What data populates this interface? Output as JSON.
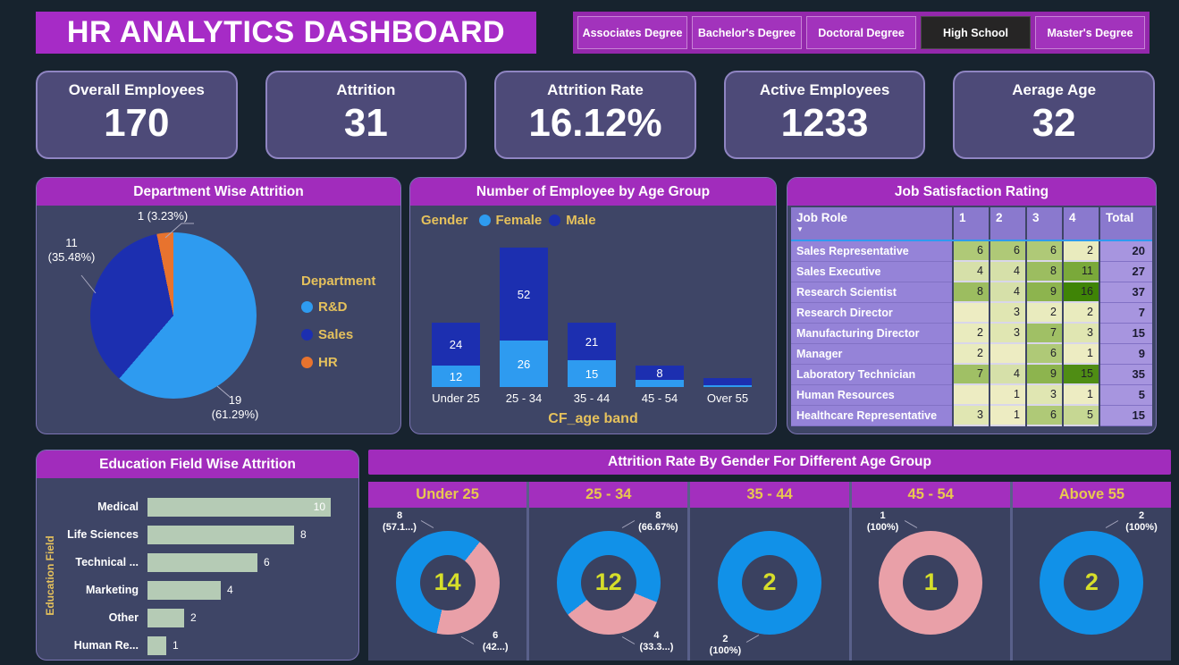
{
  "page": {
    "banner": {
      "title": "HR ANALYTICS DASHBOARD",
      "bg": "#A62BC6"
    },
    "background": "#17232E"
  },
  "filters": {
    "buttons": [
      {
        "label": "Associates Degree",
        "selected": false
      },
      {
        "label": "Bachelor's Degree",
        "selected": false
      },
      {
        "label": "Doctoral Degree",
        "selected": false
      },
      {
        "label": "High School",
        "selected": true
      },
      {
        "label": "Master's Degree",
        "selected": false
      }
    ]
  },
  "kpis": [
    {
      "label": "Overall Employees",
      "value": "170"
    },
    {
      "label": "Attrition",
      "value": "31"
    },
    {
      "label": "Attrition Rate",
      "value": "16.12%"
    },
    {
      "label": "Active Employees",
      "value": "1233"
    },
    {
      "label": "Aerage Age",
      "value": "32"
    }
  ],
  "chart_data": [
    {
      "id": "department-wise-attrition",
      "type": "pie",
      "title": "Department Wise Attrition",
      "legend_title": "Department",
      "legend_position": "right",
      "slices": [
        {
          "label": "R&D",
          "value": 19,
          "pct": 61.29,
          "color": "#2E9BF0",
          "callout": "19\n(61.29%)"
        },
        {
          "label": "Sales",
          "value": 11,
          "pct": 35.48,
          "color": "#1C2FB0",
          "callout": "11\n(35.48%)"
        },
        {
          "label": "HR",
          "value": 1,
          "pct": 3.23,
          "color": "#E8732E",
          "callout": "1 (3.23%)"
        }
      ]
    },
    {
      "id": "employees-by-age-group",
      "type": "bar",
      "stacked": true,
      "title": "Number of Employee by Age Group",
      "legend_title": "Gender",
      "categories": [
        "Under 25",
        "25 - 34",
        "35 - 44",
        "45 - 54",
        "Over 55"
      ],
      "series": [
        {
          "name": "Female",
          "color": "#2E9BF0",
          "values": [
            12,
            26,
            15,
            4,
            1
          ]
        },
        {
          "name": "Male",
          "color": "#1C2FB0",
          "values": [
            24,
            52,
            21,
            8,
            4
          ]
        }
      ],
      "xlabel": "CF_age band",
      "ylim": [
        0,
        78
      ],
      "label_min": 8
    },
    {
      "id": "job-satisfaction-rating",
      "type": "heatmap",
      "title": "Job Satisfaction Rating",
      "columns": [
        "Job Role",
        "1",
        "2",
        "3",
        "4",
        "Total"
      ],
      "rows": [
        {
          "role": "Sales Representative",
          "ratings": [
            6,
            6,
            6,
            2
          ],
          "total": 20
        },
        {
          "role": "Sales Executive",
          "ratings": [
            4,
            4,
            8,
            11
          ],
          "total": 27
        },
        {
          "role": "Research Scientist",
          "ratings": [
            8,
            4,
            9,
            16
          ],
          "total": 37
        },
        {
          "role": "Research Director",
          "ratings": [
            "",
            3,
            2,
            2
          ],
          "total": 7
        },
        {
          "role": "Manufacturing Director",
          "ratings": [
            2,
            3,
            7,
            3
          ],
          "total": 15
        },
        {
          "role": "Manager",
          "ratings": [
            2,
            "",
            6,
            1
          ],
          "total": 9
        },
        {
          "role": "Laboratory Technician",
          "ratings": [
            7,
            4,
            9,
            15
          ],
          "total": 35
        },
        {
          "role": "Human Resources",
          "ratings": [
            "",
            1,
            3,
            1
          ],
          "total": 5
        },
        {
          "role": "Healthcare Representative",
          "ratings": [
            3,
            1,
            6,
            5
          ],
          "total": 15
        }
      ],
      "heat_colors": {
        "": "#EDECC2",
        "1": "#EDECC2",
        "2": "#E9EBBE",
        "3": "#E0E6B2",
        "4": "#D6E0A9",
        "5": "#C6D793",
        "6": "#AFC977",
        "7": "#A0C065",
        "8": "#9CBD60",
        "9": "#8DB44E",
        "11": "#7AA93A",
        "15": "#4F8D14",
        "16": "#3F8406"
      }
    },
    {
      "id": "education-field-wise-attrition",
      "type": "bar-horizontal",
      "title": "Education Field Wise Attrition",
      "ylabel": "Education Field",
      "bar_color": "#B5CBB5",
      "xmax": 10,
      "categories": [
        "Medical",
        "Life Sciences",
        "Technical ...",
        "Marketing",
        "Other",
        "Human Re..."
      ],
      "values": [
        10,
        8,
        6,
        4,
        2,
        1
      ]
    },
    {
      "id": "attrition-rate-by-gender-age",
      "type": "donut-multiples",
      "title": "Attrition Rate By Gender For Different Age Group",
      "male_color": "#1191E8",
      "female_color": "#E9A0A8",
      "center_color": "#D6DE2A",
      "groups": [
        {
          "label": "Under 25",
          "total": 14,
          "female_pct": 42.9,
          "start_deg": 38,
          "callouts": [
            {
              "lines": "8\n(57.1...)",
              "pos": "tl"
            },
            {
              "lines": "6\n(42...)",
              "pos": "br"
            }
          ]
        },
        {
          "label": "25 - 34",
          "total": 12,
          "female_pct": 33.33,
          "start_deg": 112,
          "callouts": [
            {
              "lines": "8\n(66.67%)",
              "pos": "tr"
            },
            {
              "lines": "4\n(33.3...)",
              "pos": "br"
            }
          ]
        },
        {
          "label": "35 - 44",
          "total": 2,
          "female_pct": 0,
          "start_deg": 0,
          "callouts": [
            {
              "lines": "2\n(100%)",
              "pos": "bl"
            }
          ]
        },
        {
          "label": "45 - 54",
          "total": 1,
          "female_pct": 100,
          "start_deg": 0,
          "callouts": [
            {
              "lines": "1\n(100%)",
              "pos": "tl"
            }
          ]
        },
        {
          "label": "Above 55",
          "total": 2,
          "female_pct": 0,
          "start_deg": 0,
          "callouts": [
            {
              "lines": "2\n(100%)",
              "pos": "tr"
            }
          ]
        }
      ]
    }
  ],
  "colors": {
    "page_bg": "#17232E",
    "panel_bg": "#3E4566",
    "panel_border": "#7C74B4",
    "panel_header_bg": "#A12CBC",
    "kpi_bg": "#4D4A78",
    "kpi_border": "#8F85C2",
    "gold": "#E5C15C",
    "selected_filter_bg": "#262525"
  }
}
